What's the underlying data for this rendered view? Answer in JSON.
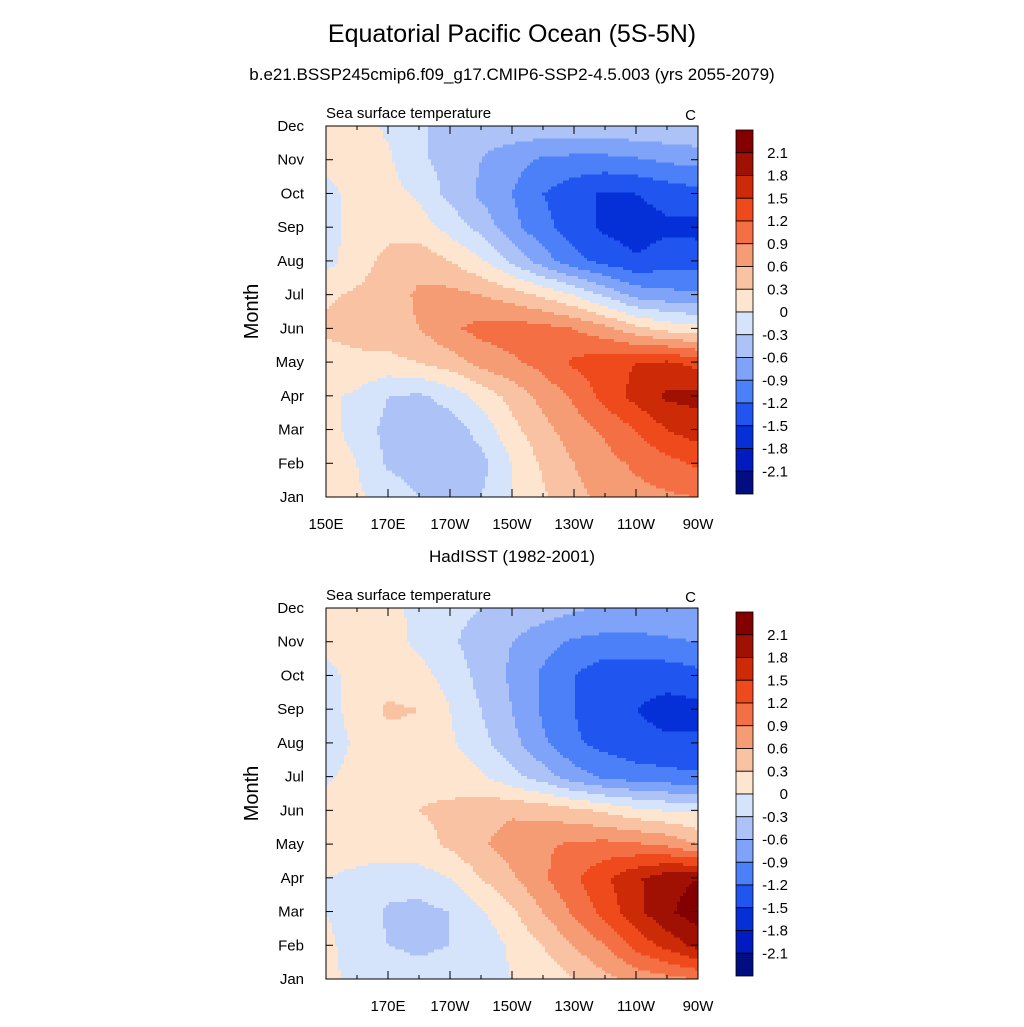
{
  "header": {
    "title": "Equatorial Pacific Ocean (5S-5N)",
    "subtitle": "b.e21.BSSP245cmip6.f09_g17.CMIP6-SSP2-4.5.003 (yrs 2055-2079)"
  },
  "colors": {
    "levels": [
      -2.1,
      -1.8,
      -1.5,
      -1.2,
      -0.9,
      -0.6,
      -0.3,
      0,
      0.3,
      0.6,
      0.9,
      1.2,
      1.5,
      1.8,
      2.1
    ],
    "fills": [
      "#000e82",
      "#001bbf",
      "#0530d8",
      "#2055f0",
      "#4c80f8",
      "#7fa3f8",
      "#adc3f8",
      "#d5e4fb",
      "#fde5d0",
      "#f8c2a3",
      "#f69c75",
      "#f46f44",
      "#ee4a1b",
      "#cd2a07",
      "#a01003",
      "#840000"
    ]
  },
  "chart_data": [
    {
      "type": "heatmap",
      "title": "",
      "left_label": "Sea surface temperature",
      "right_label": "C",
      "xlabel": "",
      "ylabel": "Month",
      "x": [
        150,
        160,
        170,
        180,
        190,
        200,
        210,
        220,
        230,
        240,
        250,
        260,
        270
      ],
      "x_ticks": [
        "150E",
        "170E",
        "170W",
        "150W",
        "130W",
        "110W",
        "90W"
      ],
      "x_tick_values": [
        150,
        170,
        190,
        210,
        230,
        250,
        270
      ],
      "xlim": [
        150,
        270
      ],
      "y": [
        "Jan",
        "Feb",
        "Mar",
        "Apr",
        "May",
        "Jun",
        "Jul",
        "Aug",
        "Sep",
        "Oct",
        "Nov",
        "Dec"
      ],
      "colorbar_labels": [
        "2.1",
        "1.8",
        "1.5",
        "1.2",
        "0.9",
        "0.6",
        "0.3",
        "0",
        "-0.3",
        "-0.6",
        "-0.9",
        "-1.2",
        "-1.5",
        "-1.8",
        "-2.1"
      ],
      "values": [
        [
          0.1,
          0.05,
          -0.1,
          -0.3,
          -0.4,
          -0.3,
          0.0,
          0.25,
          0.5,
          0.7,
          0.8,
          0.85,
          0.9
        ],
        [
          0.15,
          0.0,
          -0.35,
          -0.45,
          -0.5,
          -0.4,
          0.0,
          0.35,
          0.6,
          0.8,
          0.95,
          1.1,
          1.25
        ],
        [
          0.1,
          -0.1,
          -0.4,
          -0.5,
          -0.45,
          -0.2,
          0.2,
          0.5,
          0.75,
          0.95,
          1.2,
          1.5,
          1.65
        ],
        [
          0.05,
          -0.05,
          -0.3,
          -0.35,
          -0.2,
          0.1,
          0.4,
          0.7,
          0.95,
          1.3,
          1.6,
          1.85,
          1.9
        ],
        [
          0.15,
          0.2,
          0.2,
          0.3,
          0.45,
          0.7,
          0.85,
          1.0,
          1.25,
          1.4,
          1.5,
          1.55,
          1.4
        ],
        [
          0.35,
          0.45,
          0.5,
          0.6,
          0.85,
          1.0,
          1.05,
          1.0,
          0.9,
          0.7,
          0.4,
          0.2,
          0.1
        ],
        [
          0.25,
          0.35,
          0.45,
          0.65,
          0.7,
          0.6,
          0.45,
          0.25,
          0.0,
          -0.35,
          -0.7,
          -0.8,
          -0.85
        ],
        [
          -0.1,
          0.15,
          0.4,
          0.5,
          0.3,
          0.05,
          -0.35,
          -0.75,
          -1.1,
          -1.3,
          -1.45,
          -1.35,
          -1.3
        ],
        [
          -0.1,
          0.1,
          0.2,
          0.15,
          -0.1,
          -0.4,
          -0.8,
          -1.1,
          -1.35,
          -1.55,
          -1.65,
          -1.55,
          -1.6
        ],
        [
          -0.05,
          0.05,
          0.1,
          -0.05,
          -0.4,
          -0.65,
          -0.9,
          -1.2,
          -1.4,
          -1.55,
          -1.5,
          -1.4,
          -1.3
        ],
        [
          0.05,
          0.1,
          0.05,
          -0.25,
          -0.4,
          -0.6,
          -0.8,
          -0.95,
          -1.0,
          -1.0,
          -0.95,
          -0.85,
          -0.8
        ],
        [
          0.1,
          0.15,
          -0.05,
          -0.25,
          -0.4,
          -0.45,
          -0.4,
          -0.4,
          -0.4,
          -0.4,
          -0.35,
          -0.35,
          -0.3
        ]
      ]
    },
    {
      "type": "heatmap",
      "title": "HadISST (1982-2001)",
      "left_label": "Sea surface temperature",
      "right_label": "C",
      "xlabel": "",
      "ylabel": "Month",
      "x": [
        150,
        160,
        170,
        180,
        190,
        200,
        210,
        220,
        230,
        240,
        250,
        260,
        270
      ],
      "x_ticks": [
        "170E",
        "170W",
        "150W",
        "130W",
        "110W",
        "90W"
      ],
      "x_tick_values": [
        170,
        190,
        210,
        230,
        250,
        270
      ],
      "xlim": [
        150,
        270
      ],
      "y": [
        "Jan",
        "Feb",
        "Mar",
        "Apr",
        "May",
        "Jun",
        "Jul",
        "Aug",
        "Sep",
        "Oct",
        "Nov",
        "Dec"
      ],
      "colorbar_labels": [
        "2.1",
        "1.8",
        "1.5",
        "1.2",
        "0.9",
        "0.6",
        "0.3",
        "0",
        "-0.3",
        "-0.6",
        "-0.9",
        "-1.2",
        "-1.5",
        "-1.8",
        "-2.1"
      ],
      "values": [
        [
          0.05,
          -0.05,
          -0.15,
          -0.2,
          -0.15,
          -0.1,
          0.0,
          0.1,
          0.3,
          0.5,
          0.7,
          0.8,
          0.9
        ],
        [
          0.05,
          -0.1,
          -0.3,
          -0.35,
          -0.3,
          -0.2,
          0.05,
          0.3,
          0.6,
          0.9,
          1.3,
          1.6,
          1.9
        ],
        [
          0.0,
          -0.1,
          -0.35,
          -0.4,
          -0.3,
          -0.05,
          0.25,
          0.6,
          0.95,
          1.3,
          1.7,
          2.05,
          2.25
        ],
        [
          0.0,
          -0.05,
          -0.15,
          -0.15,
          0.0,
          0.3,
          0.55,
          0.85,
          1.15,
          1.45,
          1.75,
          2.0,
          2.1
        ],
        [
          0.1,
          0.1,
          0.15,
          0.2,
          0.35,
          0.55,
          0.75,
          0.85,
          0.95,
          1.0,
          0.95,
          0.85,
          0.6
        ],
        [
          0.15,
          0.2,
          0.25,
          0.3,
          0.35,
          0.5,
          0.55,
          0.5,
          0.4,
          0.25,
          0.1,
          0.0,
          -0.05
        ],
        [
          -0.05,
          0.1,
          0.2,
          0.25,
          0.2,
          0.05,
          -0.2,
          -0.45,
          -0.75,
          -0.95,
          -1.05,
          -1.1,
          -1.15
        ],
        [
          -0.15,
          0.05,
          0.2,
          0.2,
          0.05,
          -0.2,
          -0.5,
          -0.85,
          -1.15,
          -1.3,
          -1.4,
          -1.45,
          -1.45
        ],
        [
          -0.1,
          0.1,
          0.35,
          0.3,
          0.0,
          -0.3,
          -0.6,
          -0.95,
          -1.2,
          -1.4,
          -1.5,
          -1.6,
          -1.6
        ],
        [
          -0.05,
          0.05,
          0.15,
          0.1,
          -0.1,
          -0.4,
          -0.65,
          -0.95,
          -1.2,
          -1.4,
          -1.4,
          -1.4,
          -1.3
        ],
        [
          0.05,
          0.1,
          0.1,
          -0.05,
          -0.25,
          -0.45,
          -0.6,
          -0.8,
          -0.95,
          -1.0,
          -1.0,
          -0.95,
          -0.9
        ],
        [
          0.1,
          0.1,
          0.05,
          -0.05,
          -0.2,
          -0.3,
          -0.4,
          -0.45,
          -0.55,
          -0.65,
          -0.65,
          -0.65,
          -0.65
        ]
      ]
    }
  ]
}
